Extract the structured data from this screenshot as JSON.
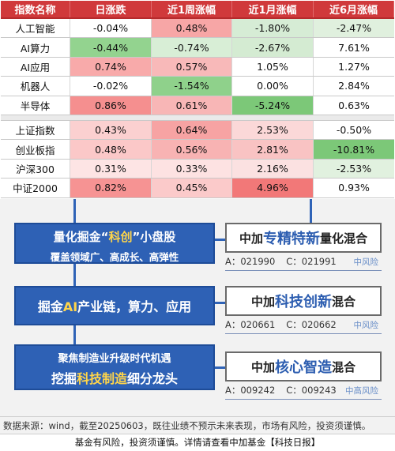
{
  "table": {
    "headers": [
      "指数名称",
      "日涨跌",
      "近1周涨幅",
      "近1月涨幅",
      "近6月涨幅"
    ],
    "group1": [
      {
        "name": "人工智能",
        "values": [
          "-0.04%",
          "0.48%",
          "-1.80%",
          "-2.47%"
        ],
        "bg": [
          "#ffffff",
          "#f7a6a6",
          "#d6ecd5",
          "#e0f0de"
        ]
      },
      {
        "name": "AI算力",
        "values": [
          "-0.44%",
          "-0.74%",
          "-2.67%",
          "7.61%"
        ],
        "bg": [
          "#93d38f",
          "#d8eed6",
          "#d4ebd2",
          "#ffffff"
        ]
      },
      {
        "name": "AI应用",
        "values": [
          "0.74%",
          "0.57%",
          "1.05%",
          "1.27%"
        ],
        "bg": [
          "#f8aaaa",
          "#f8b9b9",
          "#ffffff",
          "#ffffff"
        ]
      },
      {
        "name": "机器人",
        "values": [
          "-0.02%",
          "-1.54%",
          "0.00%",
          "2.84%"
        ],
        "bg": [
          "#ffffff",
          "#8fd18b",
          "#ffffff",
          "#ffffff"
        ]
      },
      {
        "name": "半导体",
        "values": [
          "0.86%",
          "0.61%",
          "-5.24%",
          "0.63%"
        ],
        "bg": [
          "#f58f8f",
          "#f8b6b6",
          "#7cc878",
          "#ffffff"
        ]
      }
    ],
    "group2": [
      {
        "name": "上证指数",
        "values": [
          "0.43%",
          "0.64%",
          "2.53%",
          "-0.50%"
        ],
        "bg": [
          "#fbd0d0",
          "#f7a3a3",
          "#fbd8d8",
          "#ffffff"
        ]
      },
      {
        "name": "创业板指",
        "values": [
          "0.48%",
          "0.56%",
          "2.81%",
          "-10.81%"
        ],
        "bg": [
          "#fbc8c8",
          "#f8b3b3",
          "#f9c3c3",
          "#7cc878"
        ]
      },
      {
        "name": "沪深300",
        "values": [
          "0.31%",
          "0.33%",
          "2.16%",
          "-2.53%"
        ],
        "bg": [
          "#fde4e4",
          "#fde2e2",
          "#fbe1e1",
          "#e1f1df"
        ]
      },
      {
        "name": "中证2000",
        "values": [
          "0.82%",
          "0.45%",
          "4.96%",
          "0.93%"
        ],
        "bg": [
          "#f69393",
          "#fbcaca",
          "#f27878",
          "#ffffff"
        ]
      }
    ]
  },
  "boxes": [
    {
      "line1a": "量化掘金“",
      "line1b": "科创",
      "line1c": "”小盘股",
      "line2": "覆盖领域广、高成长、高弹性"
    },
    {
      "line1a": "掘金",
      "line1b": "AI",
      "line1c": "产业链，算力、应用"
    },
    {
      "line1": "聚焦制造业升级时代机遇",
      "line2a": "挖掘",
      "line2b": "科技制造",
      "line2c": "细分龙头"
    }
  ],
  "funds": [
    {
      "prefix": "中加",
      "emph": "专精特新",
      "suffix": "量化混合",
      "a": "A：021990",
      "c": "C：021991",
      "risk": "中风险"
    },
    {
      "prefix": "中加",
      "emph": "科技创新",
      "suffix": "混合",
      "a": "A：020661",
      "c": "C：020662",
      "risk": "中风险"
    },
    {
      "prefix": "中加",
      "emph": "核心智造",
      "suffix": "混合",
      "a": "A：009242",
      "c": "C：009243",
      "risk": "中高风险"
    }
  ],
  "footer": {
    "source": "数据来源：wind，截至20250603，既往业绩不预示未来表现，市场有风险，投资须谨慎。",
    "note": "基金有风险，投资须谨慎。详情请查看中加基金【科技日报】"
  },
  "colors": {
    "header": "#d0393b",
    "blue": "#2e61b5"
  }
}
